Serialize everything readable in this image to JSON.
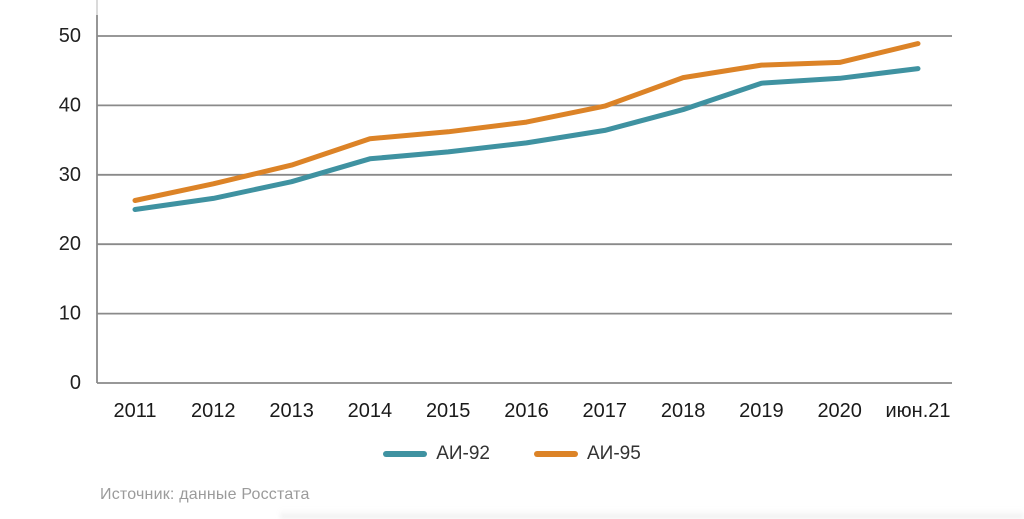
{
  "chart_data": {
    "type": "line",
    "title": "",
    "categories": [
      "2011",
      "2012",
      "2013",
      "2014",
      "2015",
      "2016",
      "2017",
      "2018",
      "2019",
      "2020",
      "июн.21"
    ],
    "series": [
      {
        "name": "АИ-92",
        "color": "#3F92A1",
        "values": [
          25.0,
          26.6,
          29.0,
          32.3,
          33.3,
          34.6,
          36.4,
          39.4,
          43.2,
          43.9,
          45.3
        ]
      },
      {
        "name": "АИ-95",
        "color": "#DC8327",
        "values": [
          26.3,
          28.7,
          31.4,
          35.2,
          36.2,
          37.6,
          39.9,
          44.0,
          45.8,
          46.2,
          48.9
        ]
      }
    ],
    "xlabel": "",
    "ylabel": "",
    "ylim": [
      0,
      50
    ],
    "yticks": [
      0,
      10,
      20,
      30,
      40,
      50
    ],
    "grid": "horizontal",
    "grid_color": "#8A8A8A",
    "legend_position": "bottom"
  },
  "source_note": "Источник: данные Росстата"
}
